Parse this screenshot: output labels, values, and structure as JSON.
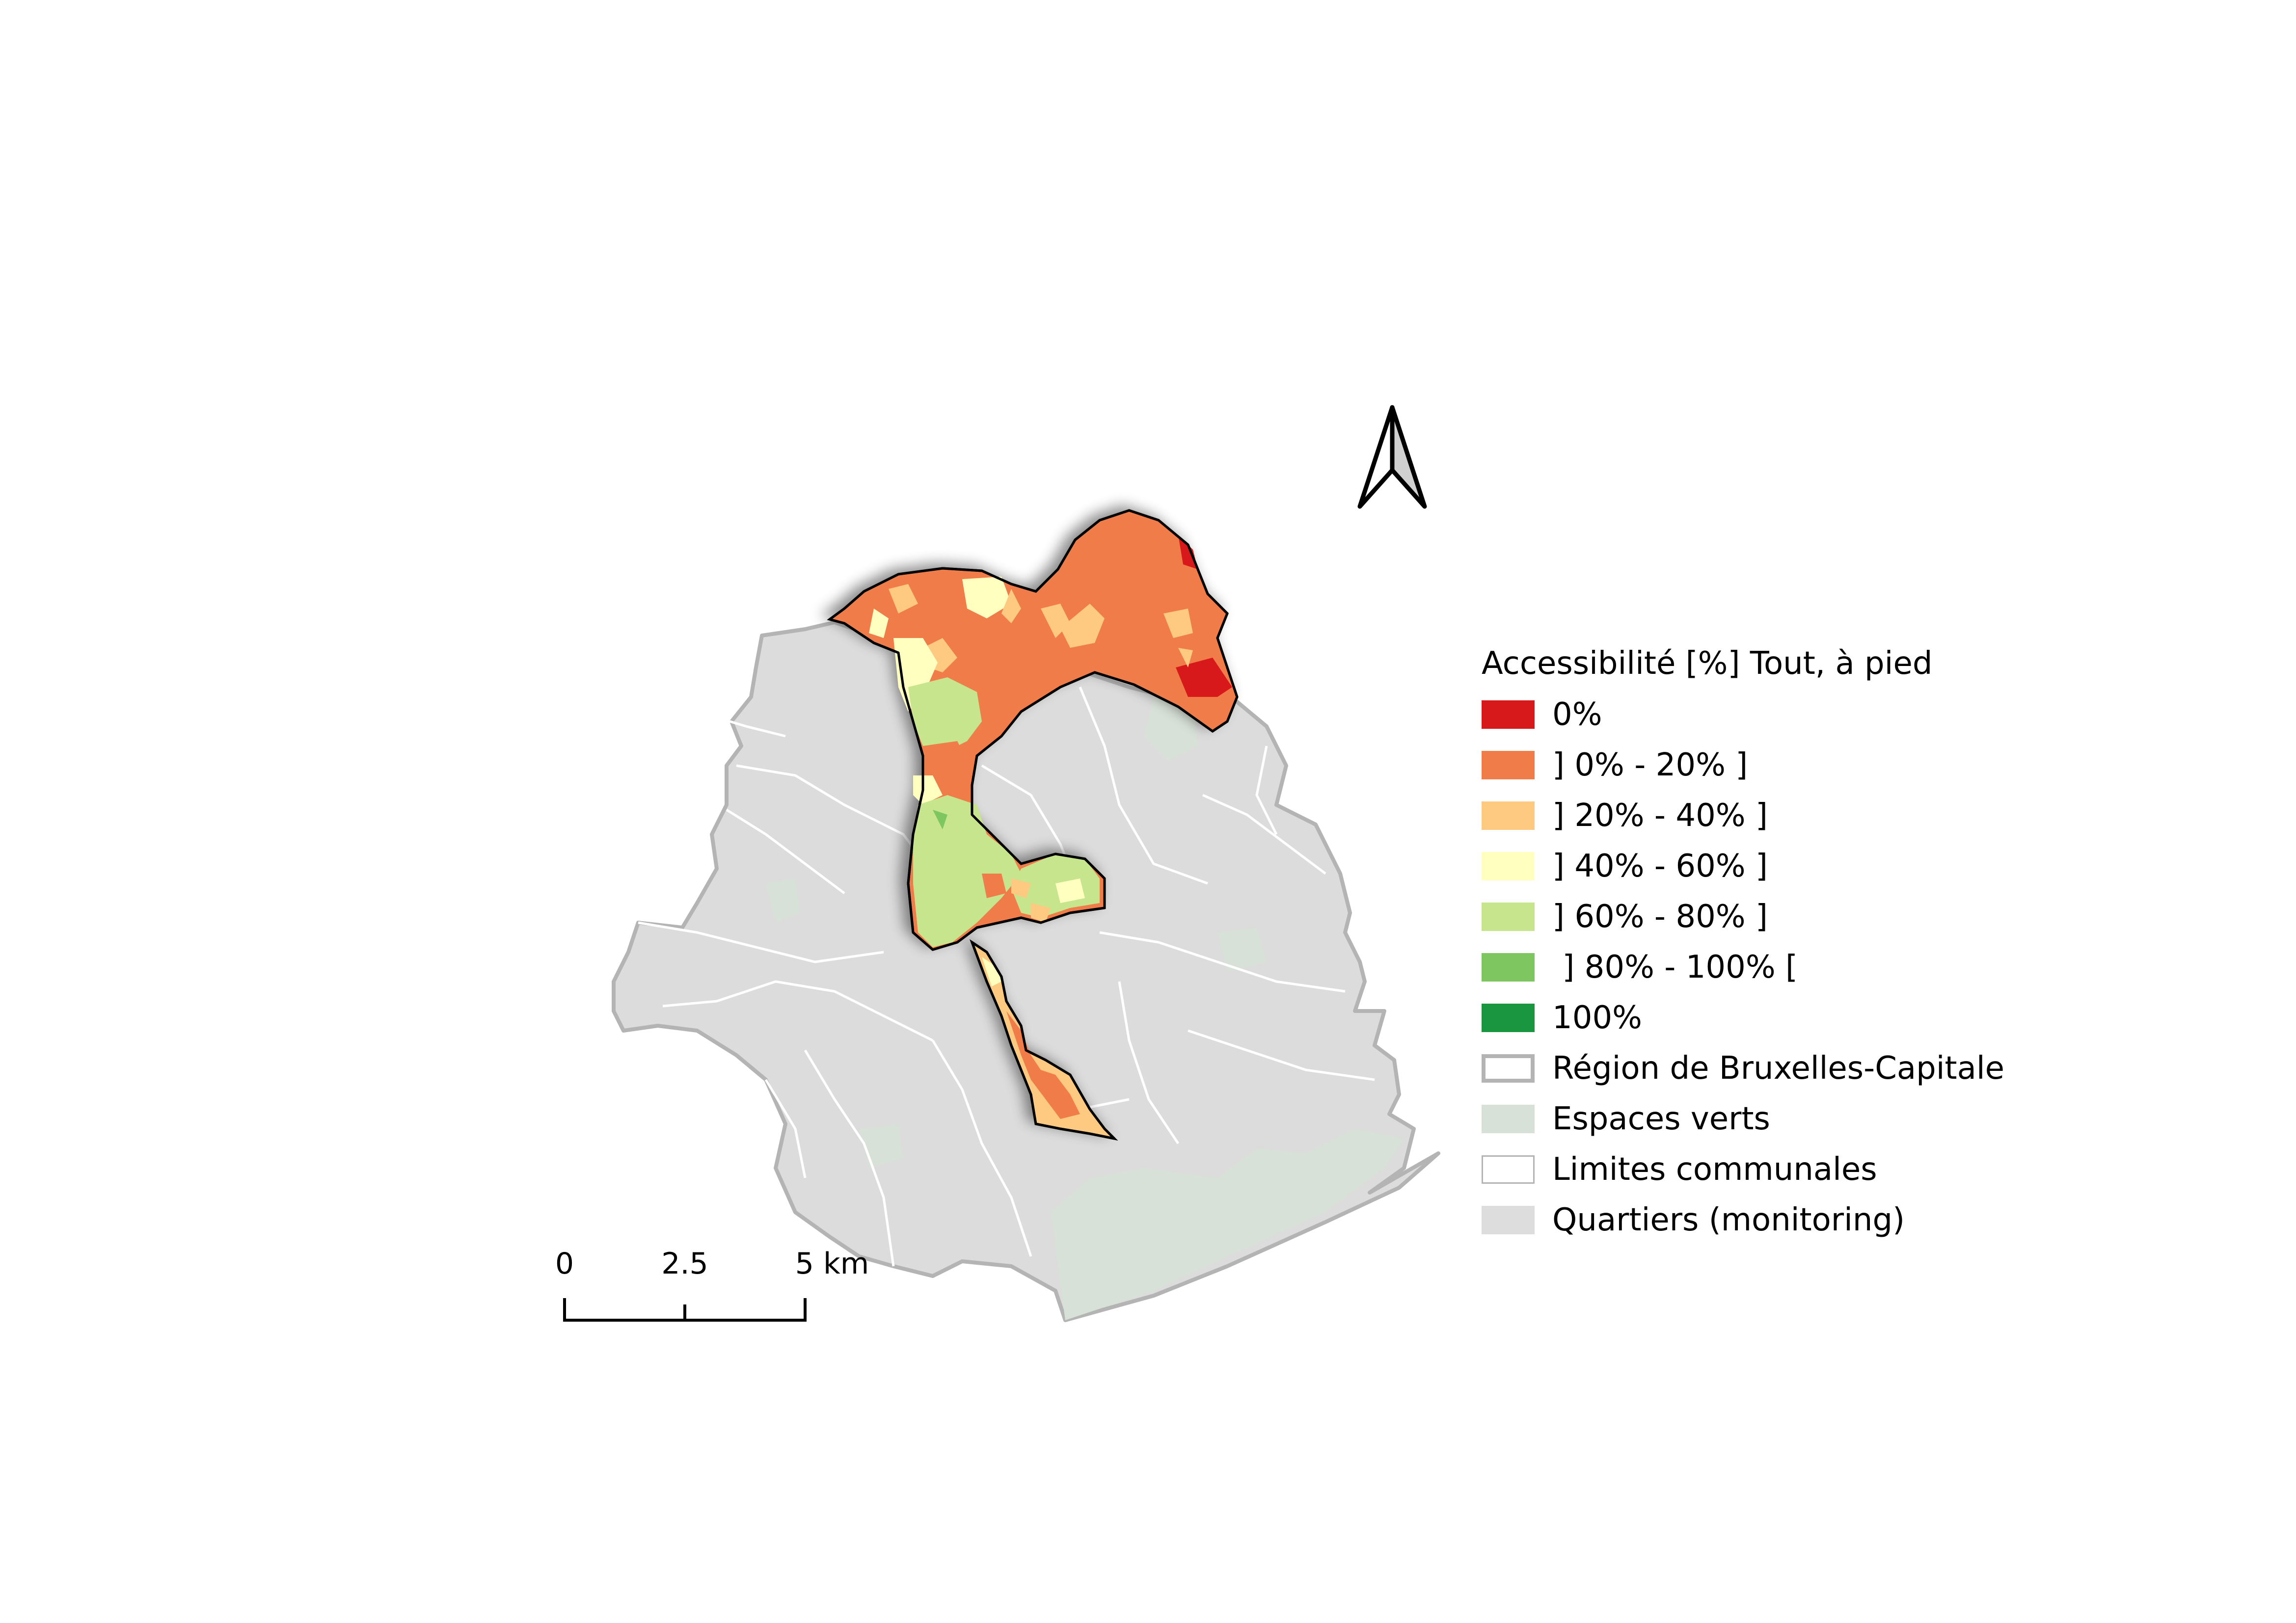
{
  "legend": {
    "title": "Accessibilité [%] Tout, à pied",
    "items": [
      {
        "label": "0%",
        "color": "#d7191c",
        "kind": "fill"
      },
      {
        "label": "] 0% - 20% ]",
        "color": "#f07c4a",
        "kind": "fill"
      },
      {
        "label": "] 20% - 40% ]",
        "color": "#fec980",
        "kind": "fill"
      },
      {
        "label": "] 40% - 60% ]",
        "color": "#ffffbf",
        "kind": "fill"
      },
      {
        "label": "] 60% - 80% ]",
        "color": "#c7e58d",
        "kind": "fill"
      },
      {
        "label": " ] 80% - 100% [",
        "color": "#7ec65f",
        "kind": "fill"
      },
      {
        "label": "100%",
        "color": "#1a9641",
        "kind": "fill"
      },
      {
        "label": "Région de Bruxelles-Capitale",
        "color": "#b4b4b4",
        "kind": "outline"
      },
      {
        "label": "Espaces verts",
        "color": "#d8e1d7",
        "kind": "fill"
      },
      {
        "label": "Limites communales",
        "color": "#b4b4b4",
        "kind": "thin-outline"
      },
      {
        "label": "Quartiers (monitoring)",
        "color": "#dddddd",
        "kind": "fill"
      }
    ]
  },
  "scalebar": {
    "labels": [
      "0",
      "2.5",
      "5 km"
    ]
  },
  "north_arrow": {
    "icon": "north-arrow-icon"
  },
  "colors": {
    "region_fill": "#dcdcdc",
    "region_border": "#b4b4b4",
    "green_space": "#d8e1d7",
    "commune_lines": "#ffffff",
    "study_area_outline": "#000000"
  }
}
